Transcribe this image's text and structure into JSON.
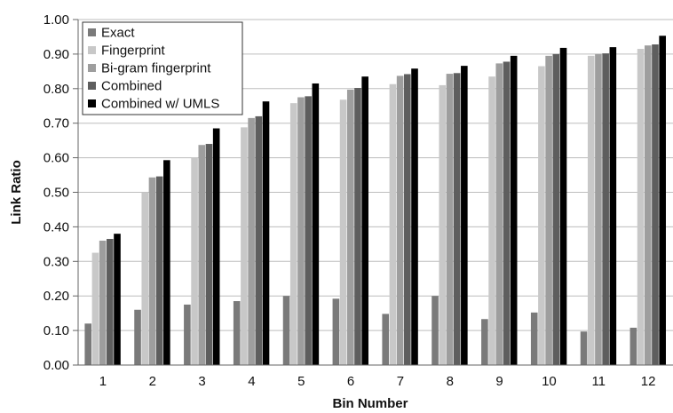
{
  "chart_data": {
    "type": "bar",
    "xlabel": "Bin Number",
    "ylabel": "Link Ratio",
    "ylim": [
      0,
      1
    ],
    "ytick_step": 0.1,
    "grid": "horizontal",
    "legend_position": "top-left",
    "categories": [
      "1",
      "2",
      "3",
      "4",
      "5",
      "6",
      "7",
      "8",
      "9",
      "10",
      "11",
      "12"
    ],
    "series": [
      {
        "name": "Exact",
        "color": "#7a7a7a",
        "values": [
          0.12,
          0.16,
          0.175,
          0.185,
          0.2,
          0.192,
          0.148,
          0.2,
          0.133,
          0.152,
          0.097,
          0.108
        ]
      },
      {
        "name": "Fingerprint",
        "color": "#c8c8c8",
        "values": [
          0.325,
          0.5,
          0.6,
          0.688,
          0.758,
          0.768,
          0.813,
          0.81,
          0.835,
          0.865,
          0.895,
          0.915
        ]
      },
      {
        "name": "Bi-gram fingerprint",
        "color": "#9e9e9e",
        "values": [
          0.36,
          0.543,
          0.637,
          0.715,
          0.775,
          0.797,
          0.837,
          0.843,
          0.873,
          0.895,
          0.9,
          0.925
        ]
      },
      {
        "name": "Combined",
        "color": "#5e5e5e",
        "values": [
          0.365,
          0.546,
          0.64,
          0.72,
          0.778,
          0.802,
          0.842,
          0.845,
          0.878,
          0.9,
          0.902,
          0.928
        ]
      },
      {
        "name": "Combined w/ UMLS",
        "color": "#000000",
        "values": [
          0.38,
          0.593,
          0.685,
          0.763,
          0.815,
          0.835,
          0.858,
          0.866,
          0.895,
          0.918,
          0.92,
          0.953
        ]
      }
    ]
  }
}
